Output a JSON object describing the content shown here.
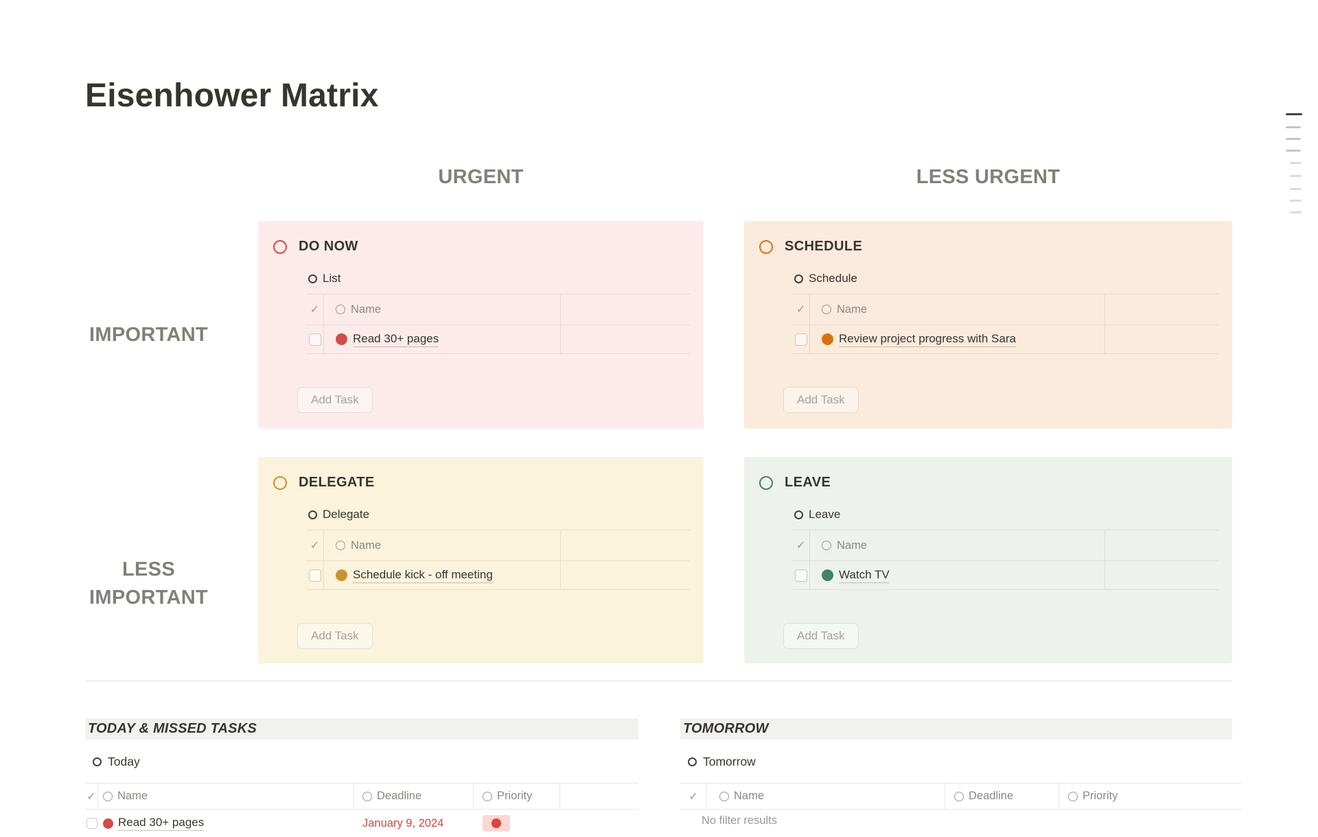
{
  "page": {
    "title": "Eisenhower Matrix"
  },
  "icons": {
    "check": "✓"
  },
  "matrix": {
    "column_headers": [
      "URGENT",
      "LESS URGENT"
    ],
    "row_headers": [
      "IMPORTANT",
      "LESS IMPORTANT"
    ],
    "quadrants": [
      {
        "title": "DO NOW",
        "view": "List",
        "name_header": "Name",
        "tasks": [
          {
            "label": "Read 30+ pages"
          }
        ],
        "add_button": "Add Task",
        "accent": "#d44c47",
        "background": "#fdebec"
      },
      {
        "title": "SCHEDULE",
        "view": "Schedule",
        "name_header": "Name",
        "tasks": [
          {
            "label": "Review project progress with Sara"
          }
        ],
        "add_button": "Add Task",
        "accent": "#d9730d",
        "background": "#faebdd"
      },
      {
        "title": "DELEGATE",
        "view": "Delegate",
        "name_header": "Name",
        "tasks": [
          {
            "label": "Schedule kick - off meeting"
          }
        ],
        "add_button": "Add Task",
        "accent": "#c9952e",
        "background": "#fbf3db"
      },
      {
        "title": "LEAVE",
        "view": "Leave",
        "name_header": "Name",
        "tasks": [
          {
            "label": "Watch TV"
          }
        ],
        "add_button": "Add Task",
        "accent": "#448361",
        "background": "#edf3ec"
      }
    ]
  },
  "today_section": {
    "title": "TODAY & MISSED TASKS",
    "view": "Today",
    "columns": {
      "name": "Name",
      "deadline": "Deadline",
      "priority": "Priority"
    },
    "row": {
      "name": "Read 30+ pages",
      "deadline": "January 9, 2024",
      "deadline_color": "#d6453f",
      "priority_color": "#d6453f"
    }
  },
  "tomorrow_section": {
    "title": "TOMORROW",
    "view": "Tomorrow",
    "columns": {
      "name": "Name",
      "deadline": "Deadline",
      "priority": "Priority"
    },
    "empty_message": "No filter results"
  }
}
